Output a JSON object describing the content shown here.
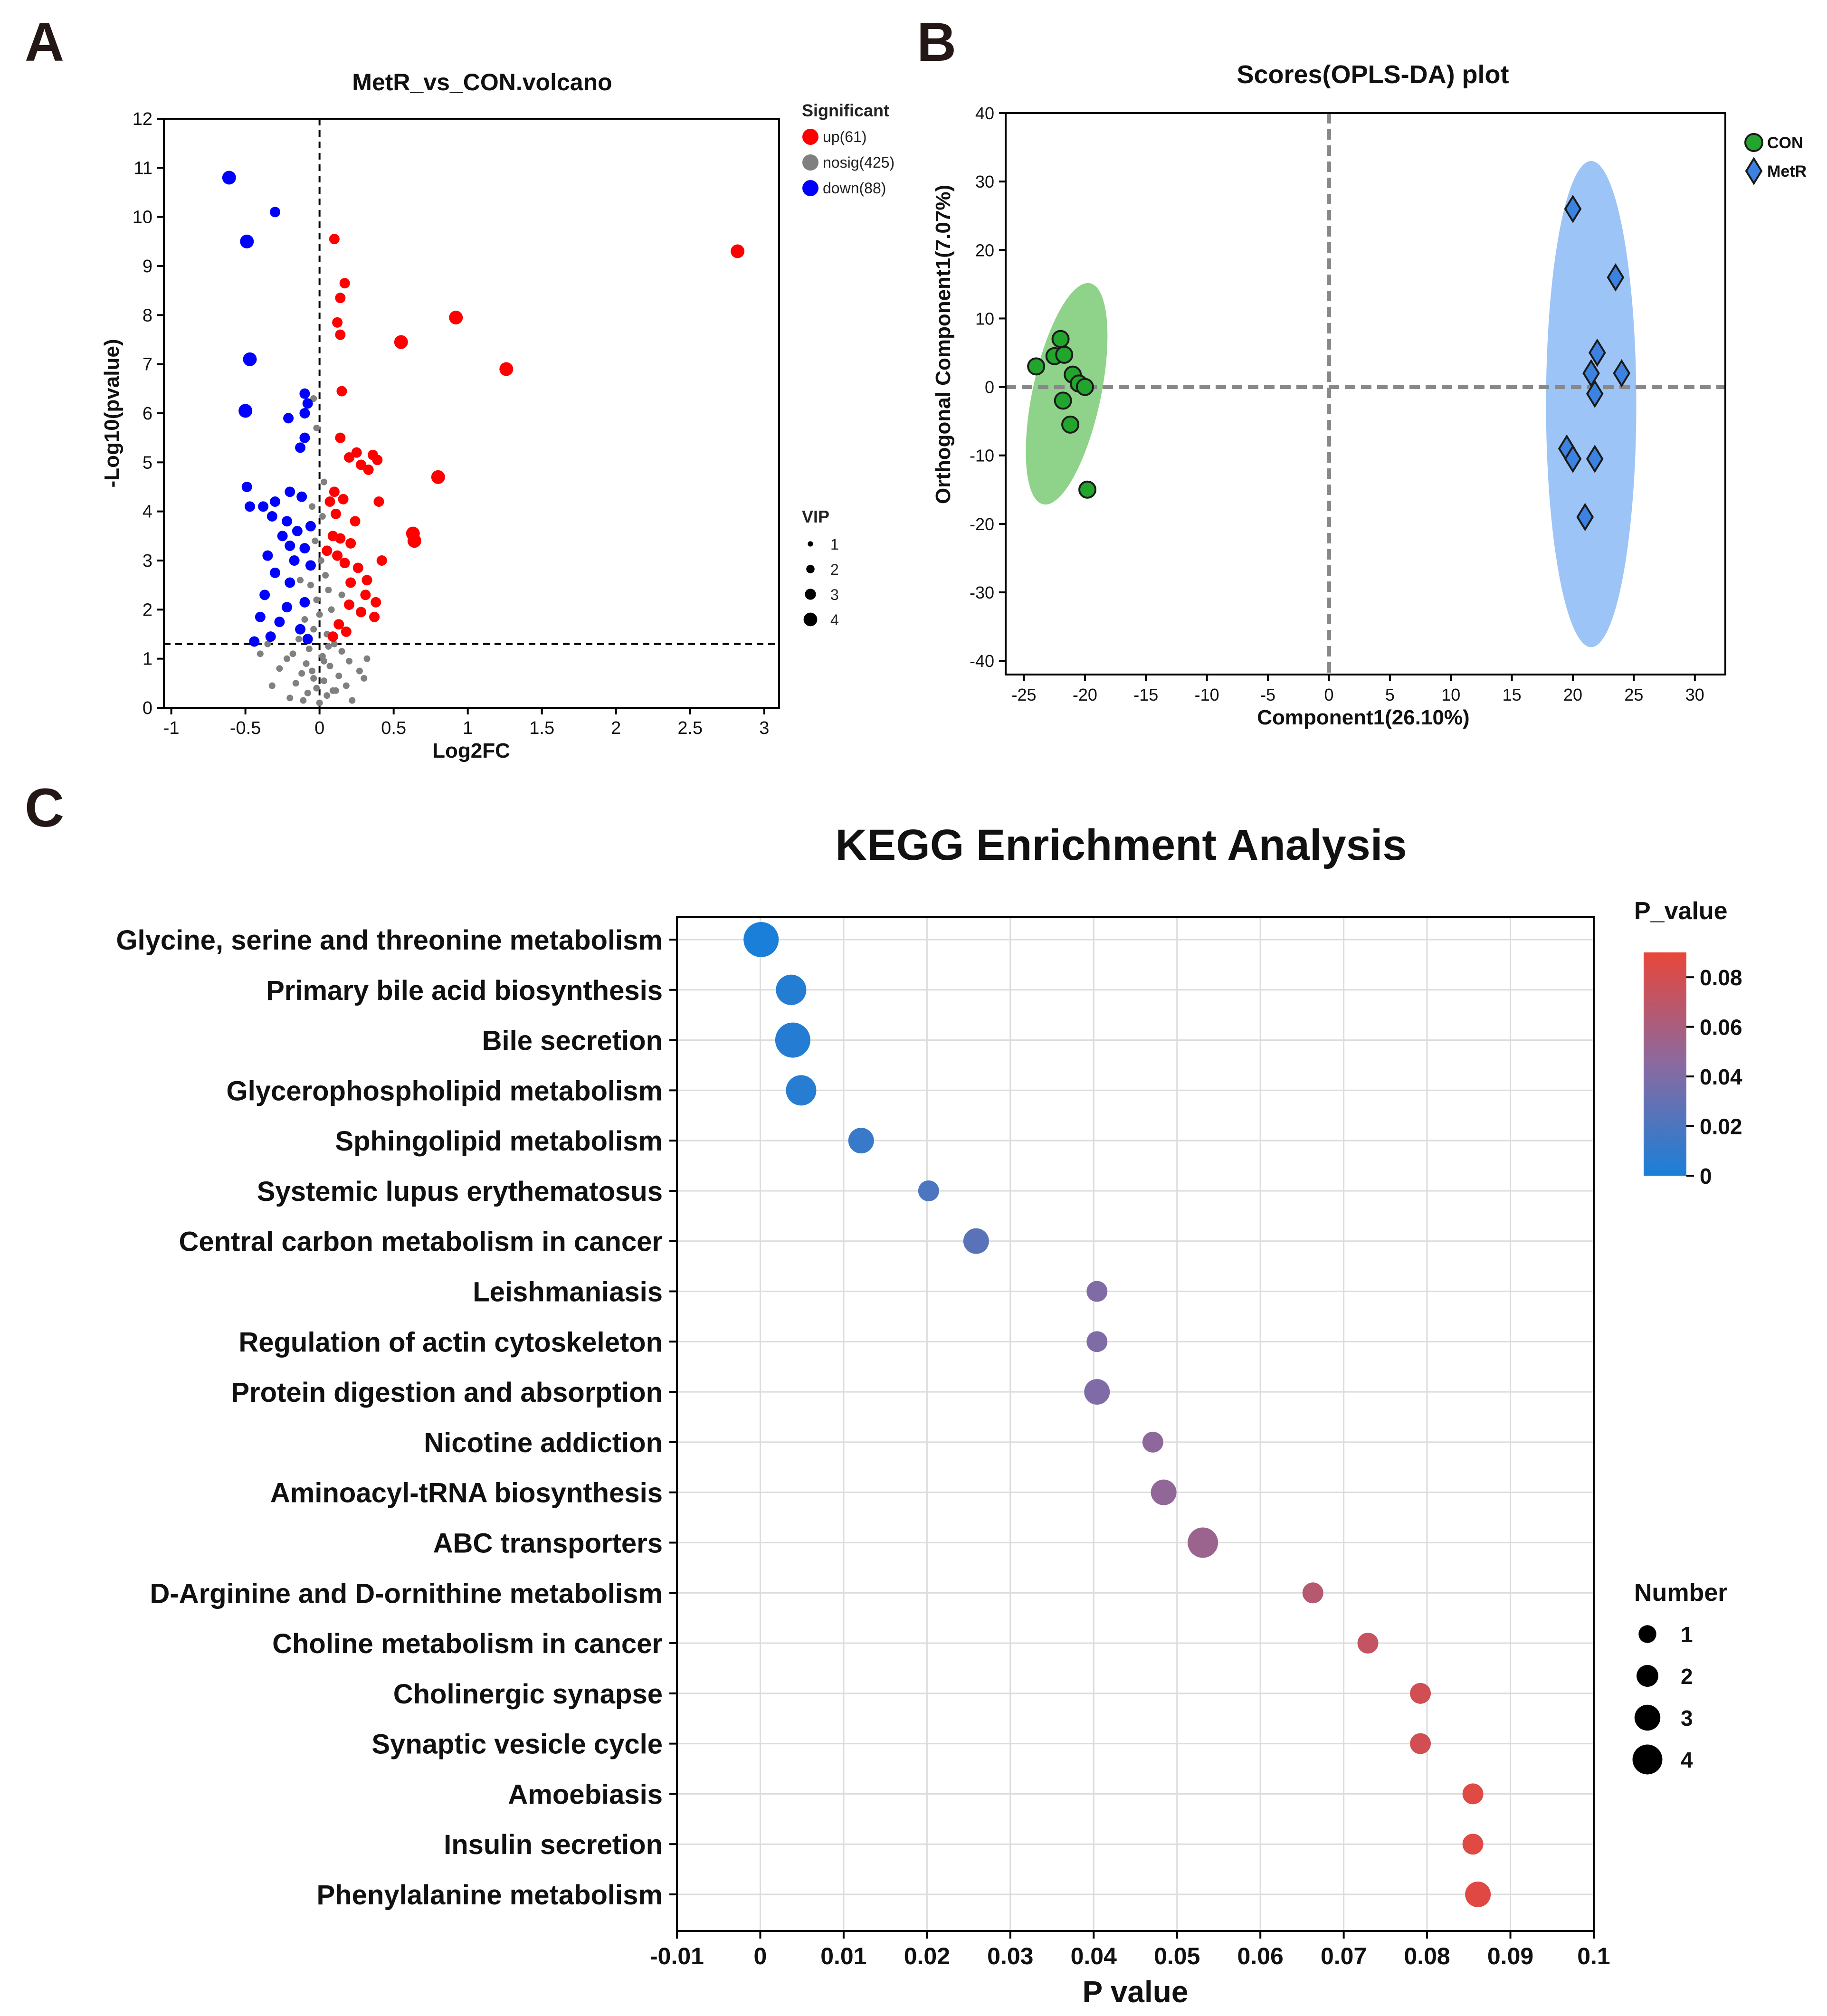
{
  "chart_data": [
    {
      "panel": "A",
      "type": "scatter",
      "title": "MetR_vs_CON.volcano",
      "xlabel": "Log2FC",
      "ylabel": "-Log10(pvalue)",
      "xlim": [
        -1.05,
        3.1
      ],
      "ylim": [
        0,
        12
      ],
      "xticks": [
        -1,
        -0.5,
        0,
        0.5,
        1,
        1.5,
        2,
        2.5,
        3
      ],
      "yticks": [
        0,
        1,
        2,
        3,
        4,
        5,
        6,
        7,
        8,
        9,
        10,
        11,
        12
      ],
      "thresholds": {
        "x": 0,
        "y": 1.3
      },
      "legend_title": "Significant",
      "legend": [
        {
          "label": "up(61)",
          "color": "#ff0000"
        },
        {
          "label": "nosig(425)",
          "color": "#808080"
        },
        {
          "label": "down(88)",
          "color": "#0000ff"
        }
      ],
      "vip_title": "VIP",
      "vip_levels": [
        1,
        2,
        3,
        4
      ],
      "series": [
        {
          "name": "up",
          "color": "#ff0000",
          "points": [
            [
              2.82,
              9.3,
              3
            ],
            [
              0.92,
              7.95,
              3
            ],
            [
              1.26,
              6.9,
              3
            ],
            [
              0.55,
              7.45,
              3
            ],
            [
              0.8,
              4.7,
              3
            ],
            [
              0.63,
              3.55,
              3
            ],
            [
              0.64,
              3.4,
              3
            ],
            [
              0.1,
              9.55,
              2
            ],
            [
              0.17,
              8.65,
              2
            ],
            [
              0.14,
              8.35,
              2
            ],
            [
              0.12,
              7.85,
              2
            ],
            [
              0.14,
              7.6,
              2
            ],
            [
              0.15,
              6.45,
              2
            ],
            [
              0.14,
              5.5,
              2
            ],
            [
              0.2,
              5.1,
              2
            ],
            [
              0.25,
              5.2,
              2
            ],
            [
              0.36,
              5.15,
              2
            ],
            [
              0.39,
              5.05,
              2
            ],
            [
              0.28,
              4.95,
              2
            ],
            [
              0.33,
              4.85,
              2
            ],
            [
              0.1,
              4.4,
              2
            ],
            [
              0.16,
              4.25,
              2
            ],
            [
              0.4,
              4.2,
              2
            ],
            [
              0.11,
              3.95,
              2
            ],
            [
              0.24,
              3.8,
              2
            ],
            [
              0.09,
              3.5,
              2
            ],
            [
              0.14,
              3.45,
              2
            ],
            [
              0.21,
              3.35,
              2
            ],
            [
              0.12,
              3.1,
              2
            ],
            [
              0.17,
              2.95,
              2
            ],
            [
              0.42,
              3.0,
              2
            ],
            [
              0.26,
              2.85,
              2
            ],
            [
              0.32,
              2.6,
              2
            ],
            [
              0.31,
              2.3,
              2
            ],
            [
              0.38,
              2.15,
              2
            ],
            [
              0.2,
              2.1,
              2
            ],
            [
              0.28,
              1.95,
              2
            ],
            [
              0.37,
              1.85,
              2
            ],
            [
              0.13,
              1.7,
              2
            ],
            [
              0.18,
              1.55,
              2
            ],
            [
              0.09,
              1.45,
              2
            ],
            [
              0.21,
              2.55,
              2
            ],
            [
              0.07,
              4.2,
              2
            ],
            [
              0.05,
              3.2,
              2
            ]
          ]
        },
        {
          "name": "down",
          "color": "#0000ff",
          "points": [
            [
              -0.61,
              10.8,
              3
            ],
            [
              -0.3,
              10.1,
              2
            ],
            [
              -0.49,
              9.5,
              3
            ],
            [
              -0.47,
              7.1,
              3
            ],
            [
              -0.5,
              6.05,
              3
            ],
            [
              -0.1,
              6.4,
              2
            ],
            [
              -0.08,
              6.2,
              2
            ],
            [
              -0.21,
              5.9,
              2
            ],
            [
              -0.1,
              6.0,
              2
            ],
            [
              -0.1,
              5.5,
              2
            ],
            [
              -0.13,
              5.3,
              2
            ],
            [
              -0.49,
              4.5,
              2
            ],
            [
              -0.3,
              4.2,
              2
            ],
            [
              -0.47,
              4.1,
              2
            ],
            [
              -0.38,
              4.1,
              2
            ],
            [
              -0.2,
              4.4,
              2
            ],
            [
              -0.12,
              4.3,
              2
            ],
            [
              -0.32,
              3.9,
              2
            ],
            [
              -0.22,
              3.8,
              2
            ],
            [
              -0.15,
              3.6,
              2
            ],
            [
              -0.06,
              3.7,
              2
            ],
            [
              -0.2,
              3.3,
              2
            ],
            [
              -0.1,
              3.25,
              2
            ],
            [
              -0.35,
              3.1,
              2
            ],
            [
              -0.17,
              3.0,
              2
            ],
            [
              -0.3,
              2.75,
              2
            ],
            [
              -0.2,
              2.55,
              2
            ],
            [
              -0.37,
              2.3,
              2
            ],
            [
              -0.1,
              2.15,
              2
            ],
            [
              -0.22,
              2.05,
              2
            ],
            [
              -0.4,
              1.85,
              2
            ],
            [
              -0.27,
              1.75,
              2
            ],
            [
              -0.13,
              1.6,
              2
            ],
            [
              -0.33,
              1.45,
              2
            ],
            [
              -0.08,
              1.4,
              2
            ],
            [
              -0.44,
              1.35,
              2
            ],
            [
              -0.06,
              2.9,
              2
            ],
            [
              -0.25,
              3.5,
              2
            ]
          ]
        },
        {
          "name": "nosig",
          "color": "#808080",
          "points": [
            [
              -0.04,
              6.3,
              1
            ],
            [
              -0.02,
              5.7,
              1
            ],
            [
              0.03,
              4.6,
              1
            ],
            [
              -0.05,
              4.1,
              1
            ],
            [
              0.02,
              3.9,
              1
            ],
            [
              -0.03,
              3.4,
              1
            ],
            [
              0.01,
              3.0,
              1
            ],
            [
              0.04,
              2.7,
              1
            ],
            [
              -0.06,
              2.5,
              1
            ],
            [
              0.06,
              2.4,
              1
            ],
            [
              -0.02,
              2.2,
              1
            ],
            [
              0.08,
              2.0,
              1
            ],
            [
              0.0,
              1.9,
              1
            ],
            [
              -0.1,
              1.8,
              1
            ],
            [
              0.12,
              1.7,
              1
            ],
            [
              -0.04,
              1.6,
              1
            ],
            [
              0.05,
              1.5,
              1
            ],
            [
              -0.14,
              1.4,
              1
            ],
            [
              0.1,
              1.3,
              1
            ],
            [
              -0.07,
              1.2,
              1
            ],
            [
              0.15,
              1.15,
              1
            ],
            [
              -0.18,
              1.1,
              1
            ],
            [
              0.02,
              1.05,
              1
            ],
            [
              -0.22,
              1.0,
              1
            ],
            [
              0.2,
              0.95,
              1
            ],
            [
              -0.09,
              0.9,
              1
            ],
            [
              0.07,
              0.85,
              1
            ],
            [
              -0.27,
              0.8,
              1
            ],
            [
              0.27,
              0.75,
              1
            ],
            [
              -0.12,
              0.7,
              1
            ],
            [
              0.13,
              0.65,
              1
            ],
            [
              -0.04,
              0.6,
              1
            ],
            [
              0.03,
              0.55,
              1
            ],
            [
              -0.16,
              0.5,
              1
            ],
            [
              0.18,
              0.45,
              1
            ],
            [
              -0.02,
              0.4,
              1
            ],
            [
              0.09,
              0.35,
              1
            ],
            [
              -0.08,
              0.3,
              1
            ],
            [
              0.05,
              0.25,
              1
            ],
            [
              -0.2,
              0.2,
              1
            ],
            [
              0.22,
              0.15,
              1
            ],
            [
              0.0,
              0.1,
              1
            ],
            [
              -0.35,
              1.3,
              1
            ],
            [
              0.3,
              0.6,
              1
            ],
            [
              -0.32,
              0.45,
              1
            ],
            [
              -0.4,
              1.1,
              1
            ],
            [
              0.32,
              1.0,
              1
            ],
            [
              -0.05,
              0.75,
              1
            ],
            [
              0.06,
              1.25,
              1
            ],
            [
              0.11,
              0.35,
              1
            ],
            [
              -0.11,
              0.15,
              1
            ],
            [
              0.15,
              2.3,
              1
            ],
            [
              -0.13,
              2.6,
              1
            ],
            [
              0.03,
              0.95,
              1
            ]
          ]
        }
      ]
    },
    {
      "panel": "B",
      "type": "scatter",
      "title": "Scores(OPLS-DA) plot",
      "xlabel": "Component1(26.10%)",
      "ylabel": "Orthogonal Component1(7.07%)",
      "xlim": [
        -26.5,
        32.5
      ],
      "ylim": [
        -42,
        40
      ],
      "xticks": [
        -25,
        -20,
        -15,
        -10,
        -5,
        0,
        5,
        10,
        15,
        20,
        25,
        30
      ],
      "yticks": [
        -40,
        -30,
        -20,
        -10,
        0,
        10,
        20,
        30,
        40
      ],
      "series": [
        {
          "name": "CON",
          "marker": "circle",
          "color": "#22a52c",
          "ellipse_color": "#8fd28a",
          "ellipse": {
            "cx": -21.5,
            "cy": -1,
            "rx": 2.8,
            "ry": 16.5,
            "rotate": 12
          },
          "points": [
            [
              -24,
              3
            ],
            [
              -22.5,
              4.5
            ],
            [
              -22,
              7
            ],
            [
              -21.7,
              4.7
            ],
            [
              -21,
              1.8
            ],
            [
              -20.5,
              0.5
            ],
            [
              -20,
              0
            ],
            [
              -21.8,
              -2
            ],
            [
              -21.2,
              -5.5
            ],
            [
              -19.8,
              -15
            ]
          ]
        },
        {
          "name": "MetR",
          "marker": "diamond",
          "color": "#3c82e0",
          "ellipse_color": "#9cc4f6",
          "ellipse": {
            "cx": 21.5,
            "cy": -2.5,
            "rx": 3.7,
            "ry": 35.5,
            "rotate": 0
          },
          "points": [
            [
              20,
              26
            ],
            [
              23.5,
              16
            ],
            [
              22,
              5
            ],
            [
              21.5,
              2
            ],
            [
              24,
              2
            ],
            [
              21.8,
              -1
            ],
            [
              19.5,
              -9
            ],
            [
              20,
              -10.5
            ],
            [
              21.8,
              -10.5
            ],
            [
              21,
              -19
            ]
          ]
        }
      ]
    },
    {
      "panel": "C",
      "type": "scatter",
      "title": "KEGG Enrichment Analysis",
      "xlabel": "P value",
      "xlim": [
        -0.01,
        0.1
      ],
      "xticks": [
        -0.01,
        0,
        0.01,
        0.02,
        0.03,
        0.04,
        0.05,
        0.06,
        0.07,
        0.08,
        0.09,
        0.1
      ],
      "xtick_labels": [
        "-0.01",
        "0",
        "0.01",
        "0.02",
        "0.03",
        "0.04",
        "0.05",
        "0.06",
        "0.07",
        "0.08",
        "0.09",
        "0.1"
      ],
      "colorbar_title": "P_value",
      "colorbar_ticks": [
        "0.08",
        "0.06",
        "0.04",
        "0.02",
        "0"
      ],
      "colorbar_range": [
        0,
        0.09
      ],
      "color_low": "#1a7fd8",
      "color_mid": "#8a6aa0",
      "color_high": "#e8463a",
      "size_title": "Number",
      "size_levels": [
        1,
        2,
        3,
        4
      ],
      "pathways": [
        {
          "name": "Glycine, serine and threonine metabolism",
          "p": 0.0001,
          "number": 4
        },
        {
          "name": "Primary bile acid biosynthesis",
          "p": 0.0037,
          "number": 3
        },
        {
          "name": "Bile secretion",
          "p": 0.0039,
          "number": 4
        },
        {
          "name": "Glycerophospholipid metabolism",
          "p": 0.0049,
          "number": 3
        },
        {
          "name": "Sphingolipid metabolism",
          "p": 0.0121,
          "number": 2
        },
        {
          "name": "Systemic lupus erythematosus",
          "p": 0.0202,
          "number": 1
        },
        {
          "name": "Central carbon metabolism in cancer",
          "p": 0.0259,
          "number": 2
        },
        {
          "name": "Leishmaniasis",
          "p": 0.0404,
          "number": 1
        },
        {
          "name": "Regulation of actin cytoskeleton",
          "p": 0.0404,
          "number": 1
        },
        {
          "name": "Protein digestion and absorption",
          "p": 0.0404,
          "number": 2
        },
        {
          "name": "Nicotine addiction",
          "p": 0.0471,
          "number": 1
        },
        {
          "name": "Aminoacyl-tRNA biosynthesis",
          "p": 0.0484,
          "number": 2
        },
        {
          "name": "ABC transporters",
          "p": 0.0531,
          "number": 3
        },
        {
          "name": "D-Arginine and D-ornithine metabolism",
          "p": 0.0663,
          "number": 1
        },
        {
          "name": "Choline metabolism in cancer",
          "p": 0.0729,
          "number": 1
        },
        {
          "name": "Cholinergic synapse",
          "p": 0.0792,
          "number": 1
        },
        {
          "name": "Synaptic vesicle cycle",
          "p": 0.0792,
          "number": 1
        },
        {
          "name": "Amoebiasis",
          "p": 0.0855,
          "number": 1
        },
        {
          "name": "Insulin secretion",
          "p": 0.0855,
          "number": 1
        },
        {
          "name": "Phenylalanine metabolism",
          "p": 0.0861,
          "number": 2
        }
      ]
    }
  ]
}
